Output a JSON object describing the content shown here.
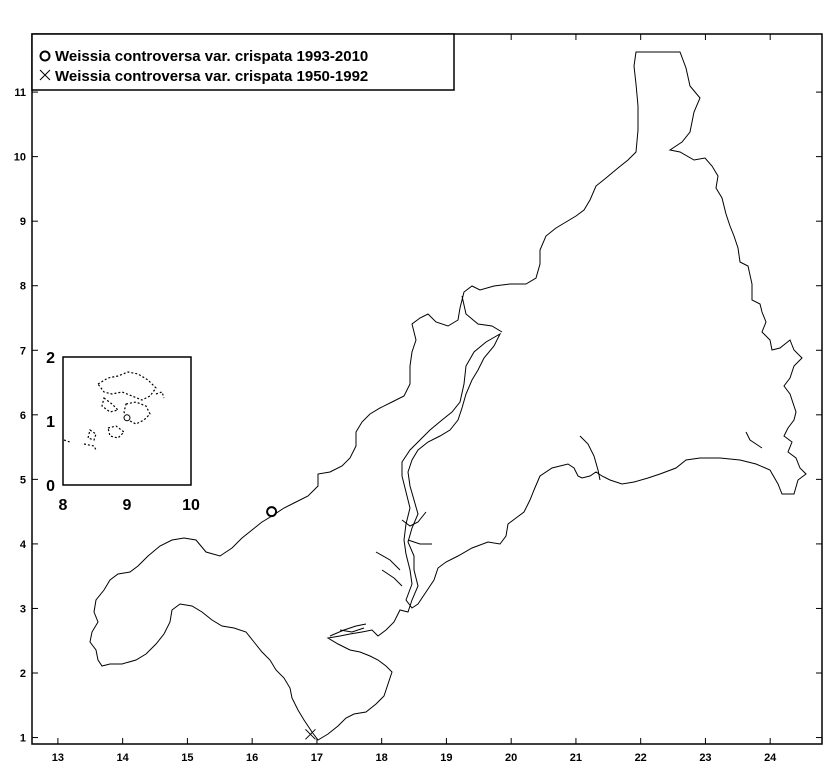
{
  "map": {
    "legend": [
      {
        "marker": "circle",
        "label": "Weissia controversa var. crispata 1993-2010"
      },
      {
        "marker": "cross",
        "label": "Weissia controversa var. crispata 1950-1992"
      }
    ],
    "x_axis": {
      "ticks": [
        "13",
        "14",
        "15",
        "16",
        "17",
        "18",
        "19",
        "20",
        "21",
        "22",
        "23",
        "24"
      ]
    },
    "y_axis": {
      "ticks": [
        "1",
        "2",
        "3",
        "4",
        "5",
        "6",
        "7",
        "8",
        "9",
        "10",
        "11"
      ]
    },
    "inset": {
      "x_ticks": [
        "8",
        "9",
        "10"
      ],
      "y_ticks": [
        "0",
        "1",
        "2"
      ]
    }
  },
  "chart_data": {
    "type": "scatter",
    "title": "",
    "xlabel": "",
    "ylabel": "",
    "xlim": [
      12.6,
      24.8
    ],
    "ylim": [
      0.9,
      11.9
    ],
    "series": [
      {
        "name": "Weissia controversa var. crispata 1993-2010",
        "marker": "circle",
        "points": [
          {
            "x": 16.3,
            "y": 4.5
          }
        ]
      },
      {
        "name": "Weissia controversa var. crispata 1950-1992",
        "marker": "cross",
        "points": [
          {
            "x": 16.9,
            "y": 1.05
          }
        ]
      }
    ],
    "inset": {
      "xlim": [
        8,
        10
      ],
      "ylim": [
        0,
        2
      ],
      "points": [
        {
          "x": 9.0,
          "y": 1.05,
          "marker": "circle"
        }
      ]
    },
    "colors": {
      "ink": "#000000",
      "background": "#ffffff"
    }
  }
}
